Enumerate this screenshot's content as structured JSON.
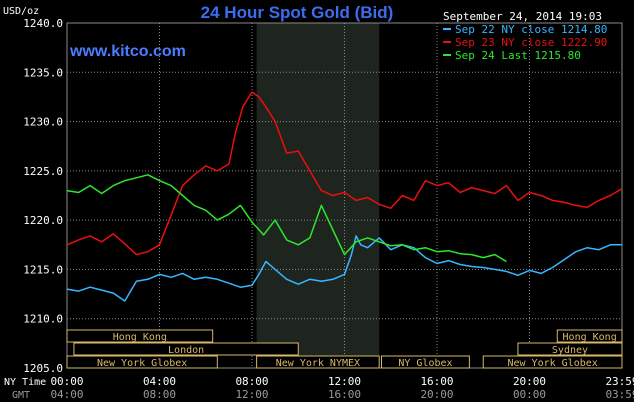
{
  "chart_data": {
    "type": "line",
    "title": "24 Hour Spot Gold (Bid)",
    "watermark": "www.kitco.com",
    "ylabel": "USD/oz",
    "timestamp": "September 24, 2014 19:03",
    "ylim": [
      1205,
      1240
    ],
    "yticks": [
      "1240.0",
      "1235.0",
      "1230.0",
      "1225.0",
      "1220.0",
      "1215.0",
      "1210.0",
      "1205.0"
    ],
    "x_hours": [
      0,
      4,
      8,
      12,
      16,
      20,
      24
    ],
    "xticks_ny_label": "NY Time",
    "xticks_ny": [
      "00:00",
      "04:00",
      "08:00",
      "12:00",
      "16:00",
      "20:00",
      "23:59"
    ],
    "xticks_gmt_label": "GMT",
    "xticks_gmt": [
      "04:00",
      "08:00",
      "12:00",
      "16:00",
      "20:00",
      "00:00",
      "03:59"
    ],
    "nymex_shade_hours": [
      8.2,
      13.5
    ],
    "colors": {
      "background": "#000000",
      "grid": "#8a8a8a",
      "title": "#3a6df0",
      "watermark": "#4a7dff",
      "axis_text": "#ffffff",
      "session_fill": "#000000",
      "session_border": "#d9b86a",
      "session_text": "#d9b86a",
      "shade": "#1e241e"
    },
    "sessions": [
      {
        "label": "Hong Kong",
        "start": 0.0,
        "end": 6.3,
        "row": 0
      },
      {
        "label": "Hong Kong",
        "start": 21.2,
        "end": 24.0,
        "row": 0
      },
      {
        "label": "London",
        "start": 0.3,
        "end": 10.0,
        "row": 1
      },
      {
        "label": "Sydney",
        "start": 19.5,
        "end": 24.0,
        "row": 1
      },
      {
        "label": "New York Globex",
        "start": 0.0,
        "end": 6.5,
        "row": 2
      },
      {
        "label": "New York NYMEX",
        "start": 8.2,
        "end": 13.5,
        "row": 2
      },
      {
        "label": "NY Globex",
        "start": 13.6,
        "end": 17.4,
        "row": 2
      },
      {
        "label": "New York Globex",
        "start": 18.0,
        "end": 24.0,
        "row": 2
      }
    ],
    "series": [
      {
        "name": "Sep 22 NY close 1214.80",
        "color": "#35b8ff",
        "x": [
          0,
          0.5,
          1,
          1.5,
          2,
          2.5,
          3,
          3.5,
          4,
          4.5,
          5,
          5.5,
          6,
          6.5,
          7,
          7.5,
          8,
          8.3,
          8.6,
          9,
          9.5,
          10,
          10.5,
          11,
          11.5,
          12,
          12.3,
          12.5,
          12.7,
          13,
          13.5,
          14,
          14.5,
          15,
          15.5,
          16,
          16.5,
          17,
          17.5,
          18,
          18.5,
          19,
          19.5,
          20,
          20.5,
          21,
          21.5,
          22,
          22.5,
          23,
          23.5,
          24
        ],
        "values": [
          1213.0,
          1212.8,
          1213.2,
          1212.9,
          1212.6,
          1211.8,
          1213.8,
          1214.0,
          1214.5,
          1214.2,
          1214.6,
          1214.0,
          1214.2,
          1214.0,
          1213.6,
          1213.2,
          1213.4,
          1214.5,
          1215.8,
          1215.0,
          1214.0,
          1213.5,
          1214.0,
          1213.8,
          1214.0,
          1214.5,
          1216.5,
          1218.4,
          1217.5,
          1217.2,
          1218.2,
          1217.0,
          1217.5,
          1217.2,
          1216.2,
          1215.6,
          1215.9,
          1215.5,
          1215.3,
          1215.2,
          1215.0,
          1214.8,
          1214.4,
          1214.9,
          1214.6,
          1215.2,
          1216.0,
          1216.8,
          1217.2,
          1217.0,
          1217.5,
          1217.5
        ]
      },
      {
        "name": "Sep 23 NY close 1222.90",
        "color": "#e81010",
        "x": [
          0,
          0.5,
          1,
          1.5,
          2,
          2.5,
          3,
          3.5,
          4,
          4.5,
          5,
          5.5,
          6,
          6.5,
          7,
          7.3,
          7.6,
          8,
          8.3,
          8.6,
          9,
          9.5,
          10,
          10.5,
          11,
          11.5,
          12,
          12.5,
          13,
          13.5,
          14,
          14.5,
          15,
          15.5,
          16,
          16.5,
          17,
          17.5,
          18,
          18.5,
          19,
          19.5,
          20,
          20.5,
          21,
          21.5,
          22,
          22.5,
          23,
          23.5,
          24
        ],
        "values": [
          1217.5,
          1218.0,
          1218.4,
          1217.8,
          1218.6,
          1217.6,
          1216.5,
          1216.8,
          1217.5,
          1220.5,
          1223.5,
          1224.6,
          1225.5,
          1225.0,
          1225.7,
          1229.0,
          1231.5,
          1233.0,
          1232.5,
          1231.5,
          1230.0,
          1226.8,
          1227.0,
          1225.0,
          1223.0,
          1222.5,
          1222.8,
          1222.0,
          1222.3,
          1221.6,
          1221.2,
          1222.5,
          1222.0,
          1224.0,
          1223.5,
          1223.8,
          1222.8,
          1223.3,
          1223.0,
          1222.7,
          1223.5,
          1222.0,
          1222.8,
          1222.5,
          1222.0,
          1221.8,
          1221.5,
          1221.3,
          1222.0,
          1222.5,
          1223.2
        ]
      },
      {
        "name": "Sep 24 Last 1215.80",
        "color": "#2ee62e",
        "x": [
          0,
          0.5,
          1,
          1.5,
          2,
          2.5,
          3,
          3.5,
          4,
          4.5,
          5,
          5.5,
          6,
          6.5,
          7,
          7.5,
          8,
          8.5,
          9,
          9.5,
          10,
          10.5,
          11,
          11.5,
          12,
          12.5,
          13,
          13.5,
          14,
          14.5,
          15,
          15.5,
          16,
          16.5,
          17,
          17.5,
          18,
          18.5,
          19
        ],
        "values": [
          1223.0,
          1222.8,
          1223.5,
          1222.7,
          1223.5,
          1224.0,
          1224.3,
          1224.6,
          1224.0,
          1223.5,
          1222.5,
          1221.5,
          1221.0,
          1220.0,
          1220.6,
          1221.5,
          1219.8,
          1218.5,
          1220.0,
          1218.0,
          1217.5,
          1218.2,
          1221.5,
          1219.0,
          1216.5,
          1217.8,
          1218.2,
          1217.8,
          1217.4,
          1217.5,
          1217.0,
          1217.2,
          1216.8,
          1216.9,
          1216.6,
          1216.5,
          1216.2,
          1216.5,
          1215.8
        ]
      }
    ]
  }
}
